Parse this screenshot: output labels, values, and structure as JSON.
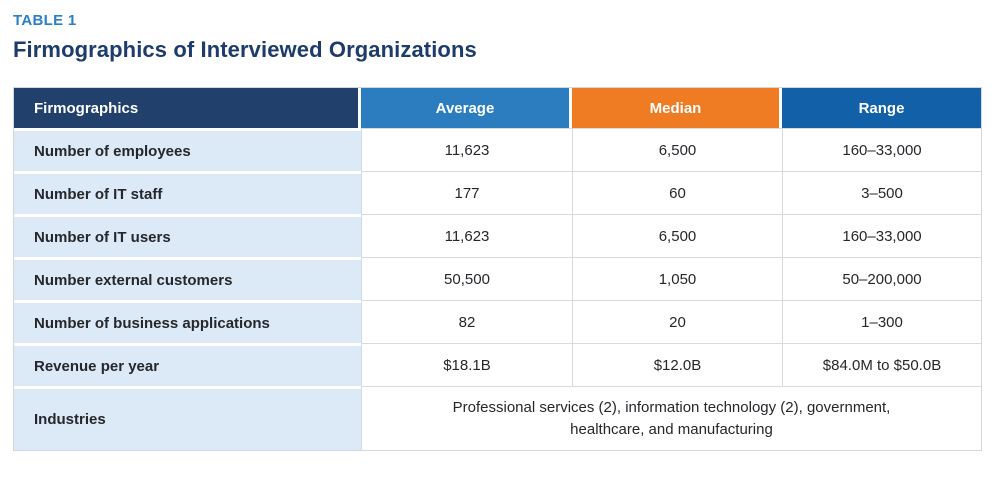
{
  "page": {
    "eyebrow": "TABLE 1",
    "title": "Firmographics of Interviewed Organizations"
  },
  "colors": {
    "eyebrow_blue": "#2b80c5",
    "title_navy": "#1e3c6b",
    "header_firmographics_bg": "#21406b",
    "header_average_bg": "#2b7dc0",
    "header_median_bg": "#ef7b23",
    "header_range_bg": "#1160a8",
    "label_column_bg": "#dce9f6",
    "gridline": "#d6dbe0",
    "cell_text": "#26272b"
  },
  "table": {
    "columns": [
      {
        "label": "Firmographics",
        "bg": "#21406b"
      },
      {
        "label": "Average",
        "bg": "#2b7dc0"
      },
      {
        "label": "Median",
        "bg": "#ef7b23"
      },
      {
        "label": "Range",
        "bg": "#1160a8"
      }
    ],
    "rows": [
      {
        "label": "Number of employees",
        "average": "11,623",
        "median": "6,500",
        "range": "160–33,000"
      },
      {
        "label": "Number of IT staff",
        "average": "177",
        "median": "60",
        "range": "3–500"
      },
      {
        "label": "Number of IT users",
        "average": "11,623",
        "median": "6,500",
        "range": "160–33,000"
      },
      {
        "label": "Number external customers",
        "average": "50,500",
        "median": "1,050",
        "range": "50–200,000"
      },
      {
        "label": "Number of business applications",
        "average": "82",
        "median": "20",
        "range": "1–300"
      },
      {
        "label": "Revenue per year",
        "average": "$18.1B",
        "median": "$12.0B",
        "range": "$84.0M to $50.0B"
      },
      {
        "label": "Industries",
        "span_value": "Professional services (2), information technology (2), government, healthcare, and manufacturing",
        "tall": true
      }
    ]
  }
}
